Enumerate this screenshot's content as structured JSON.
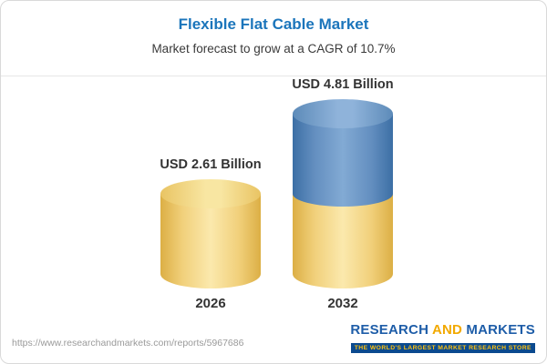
{
  "header": {
    "title": "Flexible Flat Cable Market",
    "subtitle": "Market forecast to grow at a CAGR of 10.7%"
  },
  "chart_data": {
    "type": "bar",
    "subtype": "3d-cylinder-stacked",
    "categories": [
      "2026",
      "2032"
    ],
    "series": [
      {
        "name": "base",
        "color": "#f1d07b",
        "values": [
          2.61,
          2.61
        ]
      },
      {
        "name": "growth",
        "color": "#648fc0",
        "values": [
          0,
          2.2
        ]
      }
    ],
    "totals": [
      2.61,
      4.81
    ],
    "bar_labels": [
      "USD 2.61 Billion",
      "USD 4.81 Billion"
    ],
    "title": "Flexible Flat Cable Market",
    "subtitle": "Market forecast to grow at a CAGR of 10.7%",
    "unit": "USD Billion",
    "ylim": [
      0,
      5
    ],
    "grid": false,
    "legend": "none"
  },
  "footer": {
    "url": "https://www.researchandmarkets.com/reports/5967686",
    "logo": {
      "words": [
        "RESEARCH",
        "AND",
        "MARKETS"
      ],
      "tagline": "THE WORLD'S LARGEST MARKET RESEARCH STORE"
    }
  },
  "colors": {
    "title_blue": "#1b75bb",
    "bar_yellow": "#f1d07b",
    "bar_blue": "#648fc0",
    "logo_navy": "#1e5da8",
    "logo_gold": "#f2a900",
    "tagline_bg": "#0b4a8f",
    "tagline_text": "#ffc20e"
  }
}
